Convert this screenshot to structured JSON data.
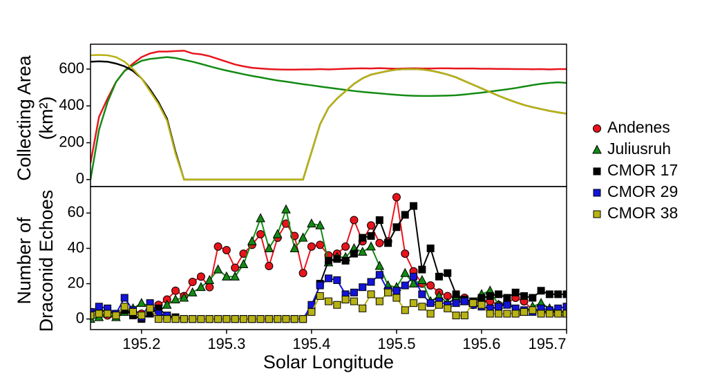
{
  "chart_data": [
    {
      "type": "line",
      "ylabel": [
        "Collecting Area",
        "(km²)"
      ],
      "x": [
        195.14,
        195.15,
        195.16,
        195.17,
        195.18,
        195.19,
        195.2,
        195.21,
        195.22,
        195.23,
        195.24,
        195.25,
        195.26,
        195.27,
        195.28,
        195.29,
        195.3,
        195.31,
        195.32,
        195.33,
        195.34,
        195.35,
        195.36,
        195.37,
        195.38,
        195.39,
        195.4,
        195.41,
        195.42,
        195.43,
        195.44,
        195.45,
        195.46,
        195.47,
        195.48,
        195.49,
        195.5,
        195.51,
        195.52,
        195.53,
        195.54,
        195.55,
        195.56,
        195.57,
        195.58,
        195.59,
        195.6,
        195.61,
        195.62,
        195.63,
        195.64,
        195.65,
        195.66,
        195.67,
        195.68,
        195.69,
        195.7
      ],
      "xlim": [
        195.14,
        195.7
      ],
      "ylim": [
        -38,
        735
      ],
      "yticks": [
        0,
        200,
        400,
        600
      ],
      "series": [
        {
          "color": "#e8141b",
          "values": [
            90,
            340,
            440,
            530,
            590,
            630,
            665,
            685,
            695,
            695,
            698,
            700,
            685,
            680,
            670,
            655,
            640,
            625,
            615,
            607,
            603,
            600,
            598,
            597,
            597,
            598,
            598,
            600,
            598,
            600,
            602,
            603,
            604,
            603,
            605,
            603,
            602,
            603,
            604,
            603,
            603,
            604,
            604,
            603,
            603,
            603,
            602,
            602,
            601,
            601,
            600,
            600,
            599,
            600,
            598,
            600,
            600
          ]
        },
        {
          "color": "#138a13",
          "values": [
            0,
            270,
            420,
            530,
            590,
            620,
            645,
            655,
            660,
            665,
            660,
            650,
            640,
            628,
            615,
            603,
            592,
            582,
            572,
            563,
            555,
            546,
            538,
            532,
            525,
            518,
            512,
            505,
            499,
            493,
            487,
            481,
            476,
            472,
            468,
            464,
            460,
            457,
            455,
            454,
            454,
            455,
            456,
            458,
            462,
            467,
            472,
            478,
            484,
            490,
            497,
            505,
            513,
            520,
            525,
            528,
            525
          ]
        },
        {
          "color": "#000000",
          "values": [
            640,
            642,
            640,
            630,
            615,
            590,
            550,
            490,
            420,
            330,
            150,
            0,
            0,
            0,
            0,
            0,
            0,
            0,
            0,
            0,
            0,
            0,
            0,
            0,
            0,
            0,
            150,
            300,
            390,
            440,
            480,
            520,
            550,
            570,
            580,
            590,
            597,
            600,
            600,
            598,
            592,
            582,
            570,
            555,
            535,
            515,
            495,
            475,
            455,
            437,
            420,
            405,
            393,
            383,
            373,
            365,
            358
          ]
        },
        {
          "color": "#b8b214",
          "values": [
            675,
            677,
            675,
            665,
            640,
            600,
            550,
            480,
            410,
            320,
            140,
            0,
            0,
            0,
            0,
            0,
            0,
            0,
            0,
            0,
            0,
            0,
            0,
            0,
            0,
            0,
            150,
            300,
            390,
            440,
            480,
            520,
            550,
            570,
            580,
            590,
            597,
            600,
            600,
            598,
            592,
            582,
            570,
            555,
            535,
            515,
            495,
            475,
            455,
            437,
            420,
            405,
            393,
            383,
            373,
            365,
            358
          ]
        }
      ]
    },
    {
      "type": "line",
      "xlabel": "Solar Longitude",
      "ylabel": [
        "Number of",
        "Draconid Echoes"
      ],
      "x": [
        195.14,
        195.15,
        195.16,
        195.17,
        195.18,
        195.19,
        195.2,
        195.21,
        195.22,
        195.23,
        195.24,
        195.25,
        195.26,
        195.27,
        195.28,
        195.29,
        195.3,
        195.31,
        195.32,
        195.33,
        195.34,
        195.35,
        195.36,
        195.37,
        195.38,
        195.39,
        195.4,
        195.41,
        195.42,
        195.43,
        195.44,
        195.45,
        195.46,
        195.47,
        195.48,
        195.49,
        195.5,
        195.51,
        195.52,
        195.53,
        195.54,
        195.55,
        195.56,
        195.57,
        195.58,
        195.59,
        195.6,
        195.61,
        195.62,
        195.63,
        195.64,
        195.65,
        195.66,
        195.67,
        195.68,
        195.69,
        195.7
      ],
      "xlim": [
        195.14,
        195.7
      ],
      "xticks": [
        195.2,
        195.3,
        195.4,
        195.5,
        195.6,
        195.7
      ],
      "ylim": [
        -6,
        75
      ],
      "yticks": [
        0,
        20,
        40,
        60
      ],
      "series": [
        {
          "name": "Andenes",
          "color": "#e8141b",
          "marker": "circle",
          "values": [
            2,
            3,
            2,
            2,
            5,
            4,
            3,
            5,
            8,
            11,
            16,
            13,
            21,
            24,
            18,
            41,
            39,
            29,
            37,
            42,
            48,
            30,
            46,
            54,
            47,
            26,
            41,
            42,
            36,
            37,
            41,
            56,
            44,
            53,
            43,
            44,
            69,
            37,
            27,
            20,
            19,
            15,
            13,
            12,
            12,
            8,
            10,
            10,
            8,
            9,
            12,
            10,
            5,
            4,
            4,
            4,
            4
          ]
        },
        {
          "name": "Juliusruh",
          "color": "#138a13",
          "marker": "triangle",
          "values": [
            0,
            1,
            3,
            1,
            4,
            6,
            9,
            7,
            4,
            8,
            11,
            12,
            15,
            18,
            22,
            28,
            24,
            24,
            31,
            44,
            57,
            40,
            48,
            62,
            40,
            46,
            54,
            53,
            32,
            35,
            35,
            40,
            38,
            41,
            30,
            19,
            18,
            26,
            20,
            22,
            10,
            13,
            9,
            12,
            10,
            9,
            14,
            16,
            8,
            10,
            5,
            4,
            7,
            9,
            6,
            4,
            3
          ]
        },
        {
          "name": "CMOR 17",
          "color": "#000000",
          "marker": "square",
          "values": [
            4,
            5,
            4,
            3,
            5,
            2,
            0,
            3,
            6,
            2,
            1,
            0,
            0,
            0,
            0,
            0,
            0,
            0,
            0,
            0,
            0,
            0,
            0,
            0,
            0,
            0,
            5,
            20,
            33,
            34,
            33,
            37,
            46,
            47,
            56,
            43,
            52,
            59,
            64,
            28,
            40,
            24,
            26,
            14,
            11,
            10,
            12,
            13,
            14,
            12,
            15,
            13,
            12,
            16,
            14,
            14,
            14
          ]
        },
        {
          "name": "CMOR 29",
          "color": "#1414d8",
          "marker": "square",
          "values": [
            4,
            7,
            6,
            3,
            12,
            5,
            1,
            9,
            3,
            2,
            0,
            0,
            0,
            0,
            0,
            0,
            0,
            0,
            0,
            0,
            0,
            0,
            0,
            0,
            0,
            0,
            8,
            19,
            23,
            22,
            14,
            15,
            18,
            21,
            25,
            16,
            16,
            19,
            24,
            14,
            9,
            10,
            8,
            9,
            10,
            8,
            7,
            6,
            7,
            8,
            6,
            5,
            4,
            6,
            5,
            6,
            7
          ]
        },
        {
          "name": "CMOR 38",
          "color": "#b8b214",
          "marker": "square",
          "values": [
            2,
            3,
            3,
            2,
            7,
            4,
            2,
            6,
            0,
            0,
            0,
            0,
            0,
            0,
            0,
            0,
            0,
            0,
            0,
            0,
            0,
            0,
            0,
            0,
            0,
            0,
            4,
            13,
            10,
            8,
            11,
            10,
            6,
            14,
            10,
            15,
            12,
            5,
            9,
            7,
            3,
            8,
            6,
            2,
            2,
            9,
            8,
            3,
            3,
            3,
            3,
            4,
            5,
            3,
            3,
            3,
            3
          ]
        }
      ]
    }
  ]
}
